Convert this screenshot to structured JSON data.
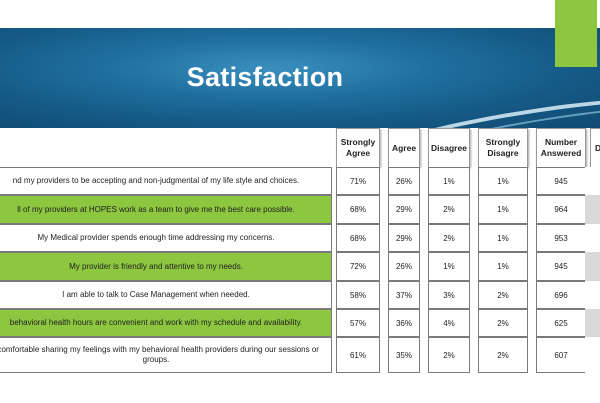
{
  "slide": {
    "title": "Satisfaction",
    "colors": {
      "banner": "#1f6f9f",
      "accent": "#8dc63f",
      "highlight_row": "#8dc63f"
    }
  },
  "columns": [
    "Strongly Agree",
    "Agree",
    "Disagree",
    "Strongly Disagre",
    "Number Answered",
    "D"
  ],
  "rows": [
    {
      "statement": "nd my providers to be accepting and non-judgmental of my life style and choices.",
      "strongly_agree": "71%",
      "agree": "26%",
      "disagree": "1%",
      "strongly_disagree": "1%",
      "number": "945",
      "highlight": false
    },
    {
      "statement": "ll of my providers at HOPES work as a team to give me the best care possible.",
      "strongly_agree": "68%",
      "agree": "29%",
      "disagree": "2%",
      "strongly_disagree": "1%",
      "number": "964",
      "highlight": true
    },
    {
      "statement": "My Medical provider spends enough time addressing my concerns.",
      "strongly_agree": "68%",
      "agree": "29%",
      "disagree": "2%",
      "strongly_disagree": "1%",
      "number": "953",
      "highlight": false
    },
    {
      "statement": "My provider is friendly and attentive to my needs.",
      "strongly_agree": "72%",
      "agree": "26%",
      "disagree": "1%",
      "strongly_disagree": "1%",
      "number": "945",
      "highlight": true
    },
    {
      "statement": "I am able to talk to Case Management when needed.",
      "strongly_agree": "58%",
      "agree": "37%",
      "disagree": "3%",
      "strongly_disagree": "2%",
      "number": "696",
      "highlight": false
    },
    {
      "statement": "behavioral health hours are convenient and work with my schedule and availability.",
      "strongly_agree": "57%",
      "agree": "36%",
      "disagree": "4%",
      "strongly_disagree": "2%",
      "number": "625",
      "highlight": true
    },
    {
      "statement": "t comfortable sharing my feelings with my behavioral health providers during our sessions or groups.",
      "strongly_agree": "61%",
      "agree": "35%",
      "disagree": "2%",
      "strongly_disagree": "2%",
      "number": "607",
      "highlight": false
    }
  ]
}
